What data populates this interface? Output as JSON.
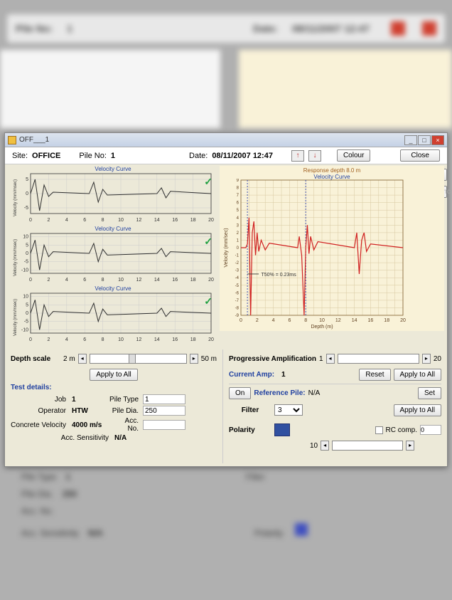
{
  "bg": {
    "pile_label": "Pile No:",
    "pile_val": "1",
    "date_label": "Date:",
    "date_val": "08/11/2007  12:47",
    "pile_type": "Pile Type",
    "pile_type_v": "1",
    "pile_dia": "Pile Dia.",
    "pile_dia_v": "250",
    "acc_no": "Acc. No.",
    "acc_sens": "Acc. Sensitivity",
    "acc_sens_v": "N/A",
    "filter": "Filter",
    "polarity": "Polarity"
  },
  "window": {
    "title": "OFF___1",
    "site_lbl": "Site:",
    "site": "OFFICE",
    "pile_lbl": "Pile No:",
    "pile": "1",
    "date_lbl": "Date:",
    "date": "08/11/2007  12:47",
    "colour": "Colour",
    "close": "Close",
    "accel": "Accel.",
    "difference": "Difference"
  },
  "charts": {
    "mini_title": "Velocity Curve",
    "mini": {
      "x_ticks": [
        0,
        2,
        4,
        6,
        8,
        10,
        12,
        14,
        16,
        18,
        20
      ],
      "y_ticks_a": [
        -5,
        0,
        5
      ],
      "y_ticks_b": [
        -10,
        -5,
        0,
        5,
        10
      ],
      "y_label": "Velocity (mm/msec)",
      "line_color": "#303030",
      "grid_color": "#cccccc",
      "bg": "#ffffff",
      "check_color": "#20a040",
      "series1": [
        [
          0,
          0
        ],
        [
          0.5,
          5
        ],
        [
          1,
          -6
        ],
        [
          1.5,
          3
        ],
        [
          2,
          -1
        ],
        [
          2.5,
          0.5
        ],
        [
          6.5,
          0
        ],
        [
          7,
          4
        ],
        [
          7.5,
          -3
        ],
        [
          8,
          1.5
        ],
        [
          8.5,
          -0.5
        ],
        [
          14,
          0
        ],
        [
          14.5,
          2
        ],
        [
          15,
          -1.5
        ],
        [
          15.5,
          0.8
        ],
        [
          20,
          0
        ]
      ],
      "series2": [
        [
          0,
          0
        ],
        [
          0.5,
          8
        ],
        [
          1,
          -10
        ],
        [
          1.5,
          5
        ],
        [
          2,
          -2
        ],
        [
          2.5,
          1
        ],
        [
          6.5,
          0
        ],
        [
          7,
          6
        ],
        [
          7.5,
          -5
        ],
        [
          8,
          2.5
        ],
        [
          8.5,
          -1
        ],
        [
          14,
          0
        ],
        [
          14.5,
          3
        ],
        [
          15,
          -2
        ],
        [
          15.5,
          1
        ],
        [
          20,
          0
        ]
      ]
    },
    "response": {
      "title1": "Response depth 8.0 m",
      "title2": "Velocity Curve",
      "x_label": "Depth (m)",
      "y_label": "Velocity (mm/sec)",
      "x_ticks": [
        0,
        2,
        4,
        6,
        8,
        10,
        12,
        14,
        16,
        18,
        20
      ],
      "y_ticks": [
        -9,
        -8,
        -7,
        -6,
        -5,
        -4,
        -3,
        -2,
        -1,
        0,
        1,
        2,
        3,
        4,
        5,
        6,
        7,
        8,
        9
      ],
      "line_color": "#d02020",
      "bg": "#f9f2d8",
      "grid_color": "#d8c8a0",
      "marker_color": "#4050b0",
      "annotation": "T50% = 0.23ms",
      "vline1": 0.8,
      "vline2": 8.0,
      "series": [
        [
          0,
          0
        ],
        [
          0.6,
          0
        ],
        [
          0.8,
          0.5
        ],
        [
          1,
          4
        ],
        [
          1.2,
          -9
        ],
        [
          1.4,
          2
        ],
        [
          1.6,
          3.5
        ],
        [
          1.8,
          -1
        ],
        [
          2,
          2
        ],
        [
          2.2,
          -0.5
        ],
        [
          2.5,
          1
        ],
        [
          3,
          -0.3
        ],
        [
          3.5,
          0.6
        ],
        [
          7,
          0
        ],
        [
          7.2,
          1.5
        ],
        [
          7.5,
          -1
        ],
        [
          7.8,
          -9
        ],
        [
          8,
          0
        ],
        [
          8.2,
          3
        ],
        [
          8.4,
          -0.8
        ],
        [
          8.6,
          1.5
        ],
        [
          9,
          -0.3
        ],
        [
          9.5,
          0.8
        ],
        [
          14,
          0
        ],
        [
          14.3,
          2
        ],
        [
          14.6,
          -3.5
        ],
        [
          14.9,
          1
        ],
        [
          15.2,
          2
        ],
        [
          15.5,
          -0.5
        ],
        [
          16,
          0.5
        ],
        [
          20,
          0
        ]
      ]
    }
  },
  "left_ctrl": {
    "depth_scale": "Depth scale",
    "ds_min": "2 m",
    "ds_max": "50 m",
    "apply_all": "Apply to All",
    "test_details": "Test details:",
    "job": "Job",
    "job_v": "1",
    "operator": "Operator",
    "operator_v": "HTW",
    "concrete_vel": "Concrete Velocity",
    "concrete_vel_v": "4000 m/s",
    "pile_type": "Pile Type",
    "pile_type_v": "1",
    "pile_dia": "Pile Dia.",
    "pile_dia_v": "250",
    "acc_no": "Acc. No.",
    "acc_sens": "Acc. Sensitivity",
    "acc_sens_v": "N/A"
  },
  "right_ctrl": {
    "prog_amp": "Progressive Amplification",
    "pa_val": "1",
    "pa_max": "20",
    "cur_amp": "Current Amp:",
    "cur_amp_v": "1",
    "reset": "Reset",
    "apply_all": "Apply to All",
    "on": "On",
    "ref_pile": "Reference Pile:",
    "ref_pile_v": "N/A",
    "set": "Set",
    "filter": "Filter",
    "filter_v": "3",
    "polarity": "Polarity",
    "rc_comp": "RC comp.",
    "rc_v": "0",
    "slider_val": "10"
  }
}
